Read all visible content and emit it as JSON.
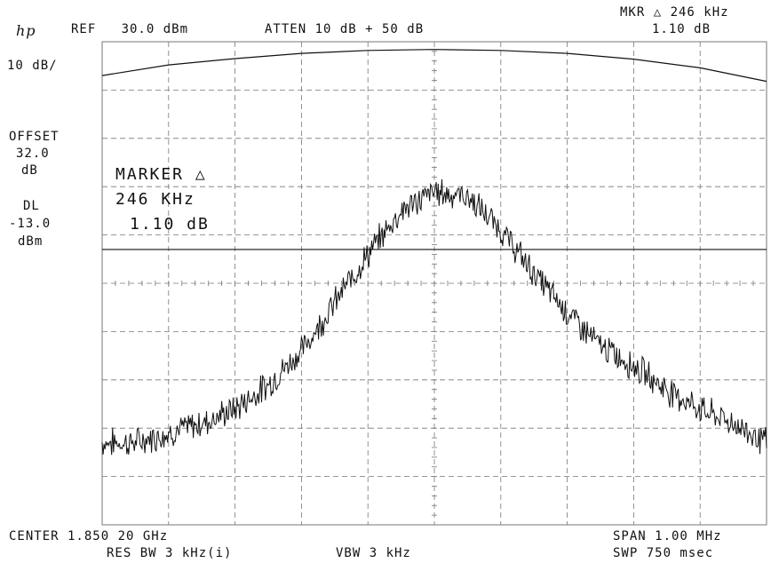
{
  "header": {
    "logo": "hp",
    "ref": "REF   30.0 dBm",
    "atten": "ATTEN 10 dB + 50 dB",
    "marker_readout_label": "MKR △ 246 kHz",
    "marker_readout_value": "1.10 dB"
  },
  "left_panel": {
    "scale": "10 dB/",
    "offset_label": "OFFSET",
    "offset_value": "32.0",
    "offset_unit": "dB",
    "dl_label": "DL",
    "dl_value": "-13.0",
    "dl_unit": "dBm"
  },
  "annotation": {
    "line1": "MARKER △",
    "line2": "246 KHz",
    "line3": "1.10 dB"
  },
  "footer": {
    "center": "CENTER 1.850 20 GHz",
    "span": "SPAN 1.00 MHz",
    "res_bw": "RES BW 3 kHz(i)",
    "vbw": "VBW 3 kHz",
    "sweep": "SWP 750 msec"
  },
  "colors": {
    "trace": "#111111",
    "grid": "#777777",
    "background": "#ffffff"
  },
  "chart_data": {
    "type": "line",
    "x_unit": "MHz offset from 1.85020 GHz",
    "y_unit": "dBm",
    "xlim": [
      -0.5,
      0.5
    ],
    "ylim": [
      -70,
      30
    ],
    "grid": true,
    "display_line_dbm": -13.0,
    "filter_curve": {
      "x": [
        -0.5,
        -0.4,
        -0.3,
        -0.2,
        -0.1,
        0.0,
        0.1,
        0.2,
        0.3,
        0.4,
        0.5
      ],
      "y": [
        23.0,
        25.2,
        26.5,
        27.6,
        28.2,
        28.4,
        28.2,
        27.6,
        26.4,
        24.6,
        21.8
      ]
    },
    "series": [
      {
        "x": [
          -0.5,
          -0.45,
          -0.4,
          -0.35,
          -0.3,
          -0.25,
          -0.2,
          -0.15,
          -0.1,
          -0.05,
          0.0,
          0.05,
          0.1,
          0.15,
          0.2,
          0.25,
          0.3,
          0.35,
          0.4,
          0.45,
          0.5
        ],
        "y": [
          -53,
          -53,
          -51,
          -49,
          -46,
          -41,
          -34,
          -24,
          -14,
          -5,
          -1,
          -2,
          -9,
          -18,
          -26,
          -33,
          -37,
          -42,
          -46,
          -49,
          -53
        ]
      }
    ]
  }
}
